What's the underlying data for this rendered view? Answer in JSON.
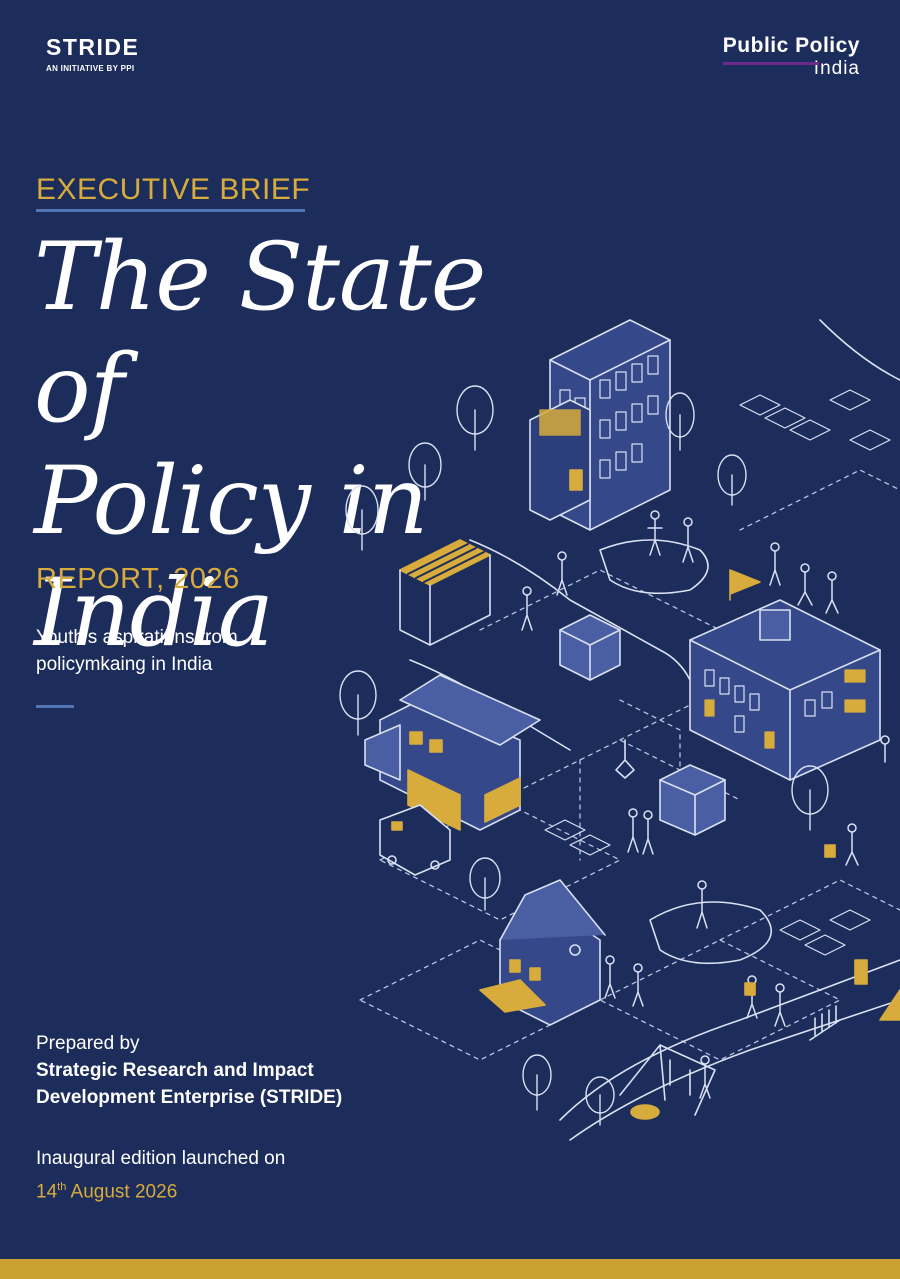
{
  "header": {
    "stride_name": "STRIDE",
    "stride_sub": "AN INITIATIVE BY PPI",
    "ppi_line1": "Public Policy",
    "ppi_line2": "India"
  },
  "cover": {
    "kicker": "EXECUTIVE BRIEF",
    "title_lines": [
      "The State of",
      "Policy in",
      "India"
    ],
    "report_year": "REPORT, 2026",
    "subtitle": "Youth’s aspirations from policymkaing in India"
  },
  "footer": {
    "prepared_by": "Prepared by",
    "org_line1": "Strategic Research and Impact",
    "org_line2": "Development Enterprise (STRIDE)",
    "launch_text": "Inaugural edition launched on",
    "launch_day": "14",
    "launch_day_suffix": "th",
    "launch_rest": " August 2026"
  },
  "colors": {
    "background": "#1c2c5b",
    "accent_gold": "#d8ac3c",
    "accent_blue": "#5275b4",
    "accent_purple": "#6c2a8f",
    "building_fill": "#34488a"
  },
  "illustration": {
    "icon": "isometric-town-illustration"
  }
}
